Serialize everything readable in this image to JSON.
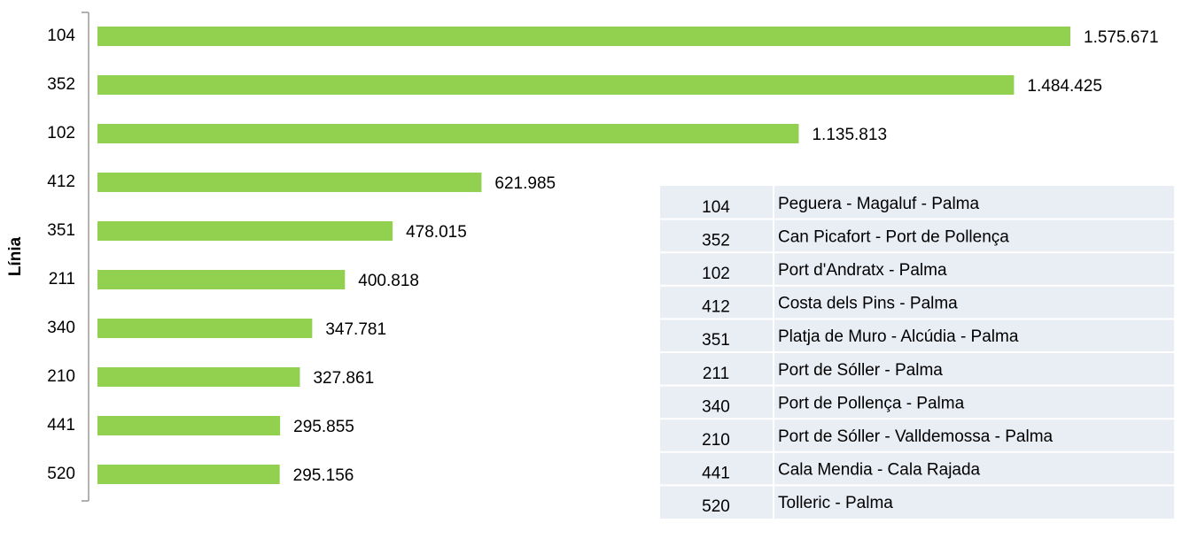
{
  "chart_data": {
    "type": "bar",
    "orientation": "horizontal",
    "y_label": "Línia",
    "categories": [
      "104",
      "352",
      "102",
      "412",
      "351",
      "211",
      "340",
      "210",
      "441",
      "520"
    ],
    "values": [
      1575671,
      1484425,
      1135813,
      621985,
      478015,
      400818,
      347781,
      327861,
      295855,
      295156
    ],
    "value_labels": [
      "1.575.671",
      "1.484.425",
      "1.135.813",
      "621.985",
      "478.015",
      "400.818",
      "347.781",
      "327.861",
      "295.855",
      "295.156"
    ],
    "color": "#92d050"
  },
  "table": {
    "rows": [
      [
        "104",
        "Peguera - Magaluf - Palma"
      ],
      [
        "352",
        "Can Picafort - Port de Pollença"
      ],
      [
        "102",
        "Port d'Andratx - Palma"
      ],
      [
        "412",
        "Costa dels Pins - Palma"
      ],
      [
        "351",
        "Platja de Muro - Alcúdia - Palma"
      ],
      [
        "211",
        "Port de Sóller - Palma"
      ],
      [
        "340",
        "Port de Pollença - Palma"
      ],
      [
        "210",
        "Port de Sóller - Valldemossa - Palma"
      ],
      [
        "441",
        "Cala Mendia - Cala Rajada"
      ],
      [
        "520",
        "Tolleric - Palma"
      ]
    ]
  }
}
